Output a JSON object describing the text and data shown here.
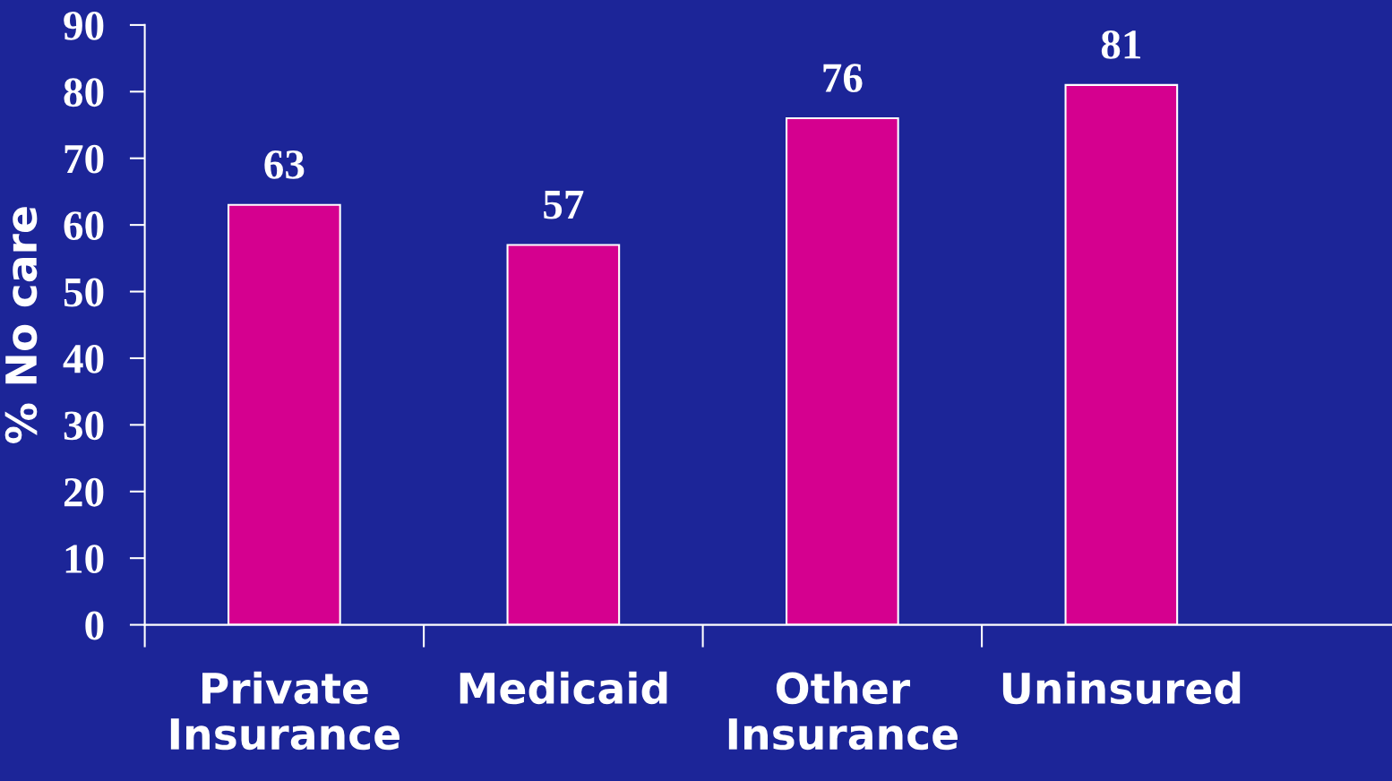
{
  "chart_data": {
    "type": "bar",
    "ylabel": "% No care",
    "categories": [
      "Private\nInsurance",
      "Medicaid",
      "Other\nInsurance",
      "Uninsured"
    ],
    "values": [
      63,
      57,
      76,
      81
    ],
    "color": "#d5008f",
    "ylim": [
      0,
      90
    ],
    "yticks": [
      0,
      10,
      20,
      30,
      40,
      50,
      60,
      70,
      80,
      90
    ],
    "data_labels": true,
    "grid": false,
    "legend": false
  }
}
